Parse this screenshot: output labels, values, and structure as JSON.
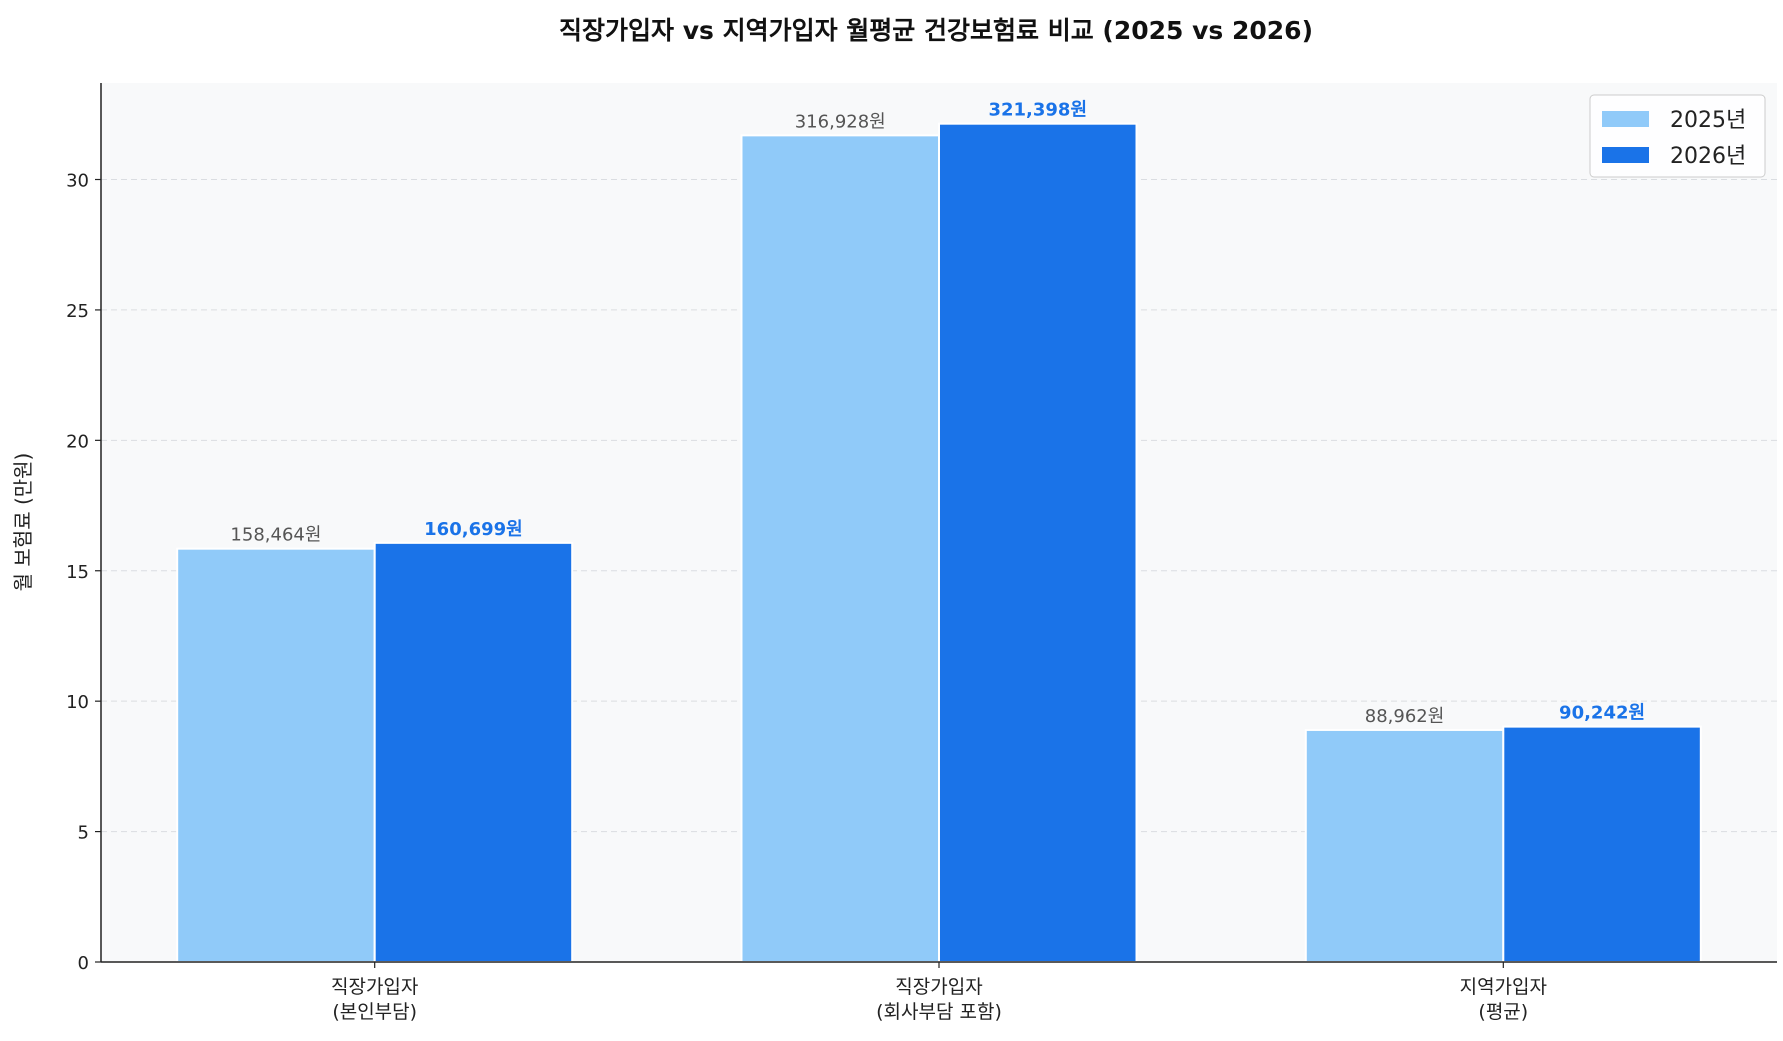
{
  "chart_data": {
    "type": "bar",
    "title": "직장가입자 vs 지역가입자 월평균 건강보험료 비교 (2025 vs 2026)",
    "xlabel": "",
    "ylabel": "월 보험료 (만원)",
    "categories": [
      "직장가입자\n(본인부담)",
      "직장가입자\n(회사부담 포함)",
      "지역가입자\n(평균)"
    ],
    "series": [
      {
        "name": "2025년",
        "color": "#90CAF9",
        "values": [
          15.8464,
          31.6928,
          8.8962
        ],
        "labels": [
          "158,464원",
          "316,928원",
          "88,962원"
        ],
        "label_color": "#555555"
      },
      {
        "name": "2026년",
        "color": "#1A73E8",
        "values": [
          16.0699,
          32.1398,
          9.0242
        ],
        "labels": [
          "160,699원",
          "321,398원",
          "90,242원"
        ],
        "label_color": "#1A73E8"
      }
    ],
    "ylim": [
      0,
      33.7
    ],
    "yticks": [
      0,
      5,
      10,
      15,
      20,
      25,
      30
    ],
    "grid": "y-dashed",
    "legend": "top-right",
    "background": "#F8F9FA"
  }
}
